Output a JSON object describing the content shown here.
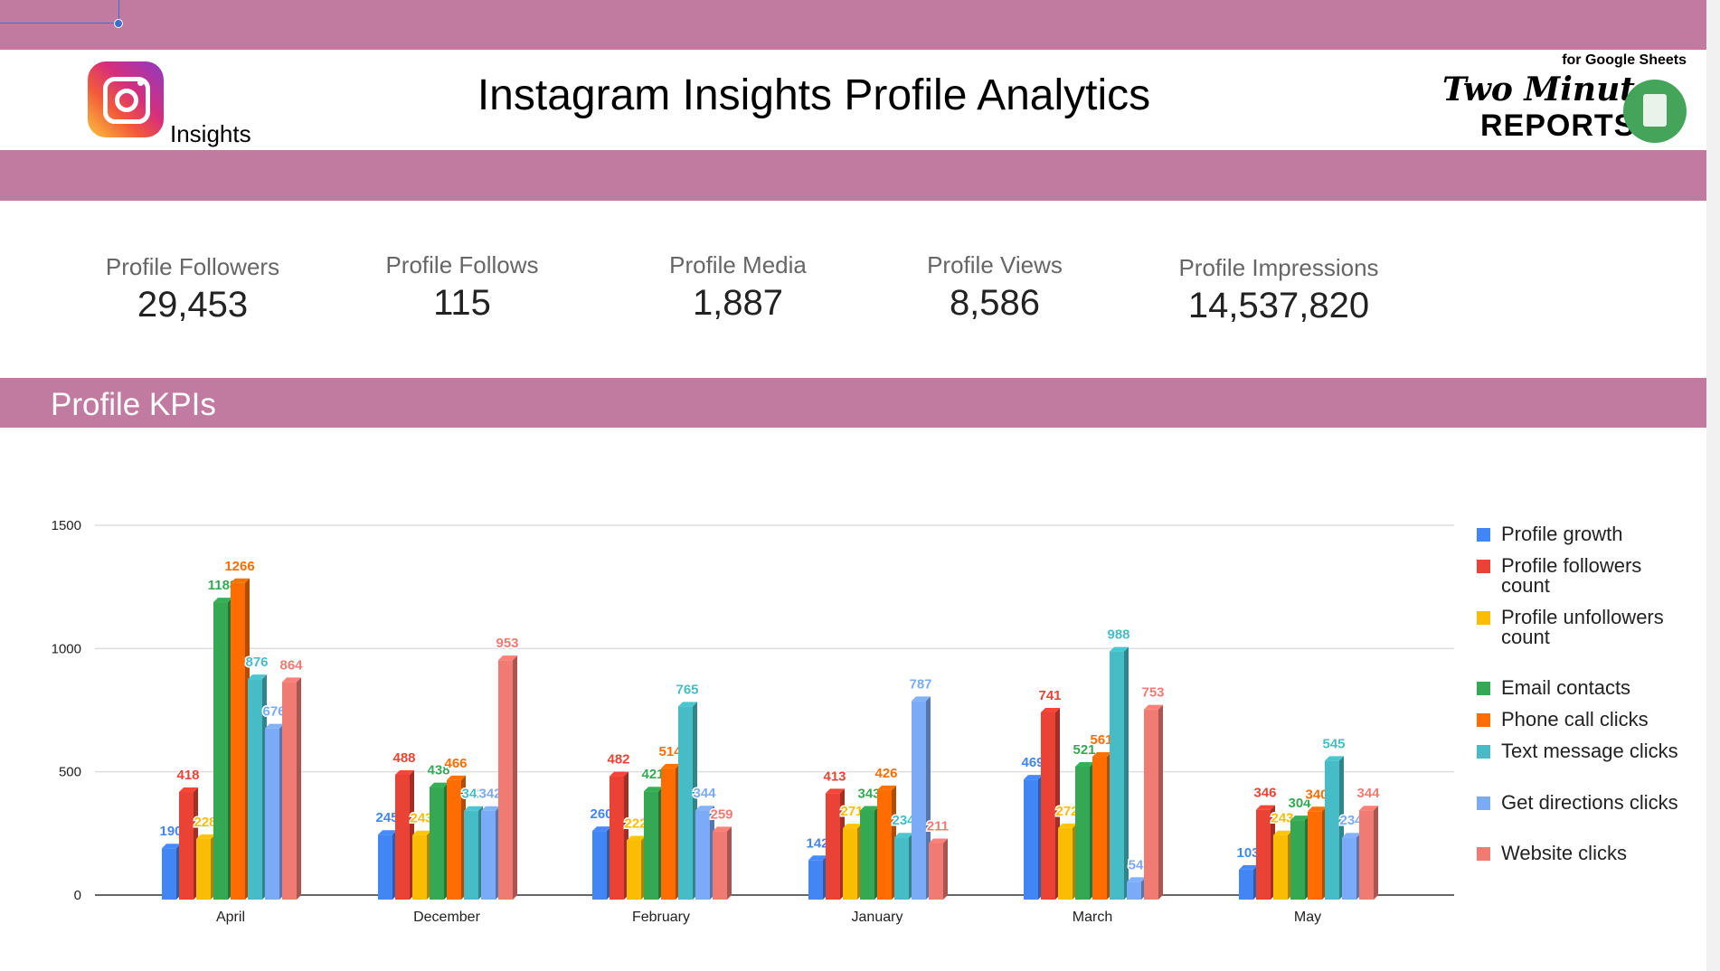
{
  "header": {
    "title": "Instagram Insights Profile Analytics",
    "logo_label": "Insights",
    "brand": {
      "for": "for Google Sheets",
      "line1": "Two Minute",
      "line2": "REPORTS"
    }
  },
  "kpis": [
    {
      "label": "Profile Followers",
      "value": "29,453"
    },
    {
      "label": "Profile Follows",
      "value": "115"
    },
    {
      "label": "Profile Media",
      "value": "1,887"
    },
    {
      "label": "Profile Views",
      "value": "8,586"
    },
    {
      "label": "Profile Impressions",
      "value": "14,537,820"
    }
  ],
  "section_title": "Profile KPIs",
  "colors": {
    "band": "#c27ba0"
  },
  "chart_data": {
    "type": "bar",
    "categories": [
      "April",
      "December",
      "February",
      "January",
      "March",
      "May"
    ],
    "ylim": [
      0,
      1500
    ],
    "yticks": [
      0,
      500,
      1000,
      1500
    ],
    "grid": true,
    "legend": "right",
    "series": [
      {
        "name": "Profile growth",
        "color": "#4285f4",
        "values": [
          190,
          245,
          260,
          142,
          469,
          103
        ]
      },
      {
        "name": "Profile followers count",
        "color": "#ea4335",
        "values": [
          418,
          488,
          482,
          413,
          741,
          346
        ]
      },
      {
        "name": "Profile unfollowers count",
        "color": "#fbbc04",
        "values": [
          228,
          243,
          222,
          271,
          272,
          243
        ]
      },
      {
        "name": "Email contacts",
        "color": "#34a853",
        "values": [
          1188,
          438,
          421,
          343,
          521,
          304
        ]
      },
      {
        "name": "Phone call clicks",
        "color": "#ff6d01",
        "values": [
          1266,
          466,
          514,
          426,
          561,
          340
        ]
      },
      {
        "name": "Text message clicks",
        "color": "#46bdc6",
        "values": [
          876,
          342,
          765,
          234,
          988,
          545
        ]
      },
      {
        "name": "Get directions clicks",
        "color": "#7baaf7",
        "values": [
          676,
          342,
          344,
          787,
          54,
          234
        ]
      },
      {
        "name": "Website clicks",
        "color": "#f07b72",
        "values": [
          864,
          953,
          259,
          211,
          753,
          344
        ]
      }
    ]
  }
}
